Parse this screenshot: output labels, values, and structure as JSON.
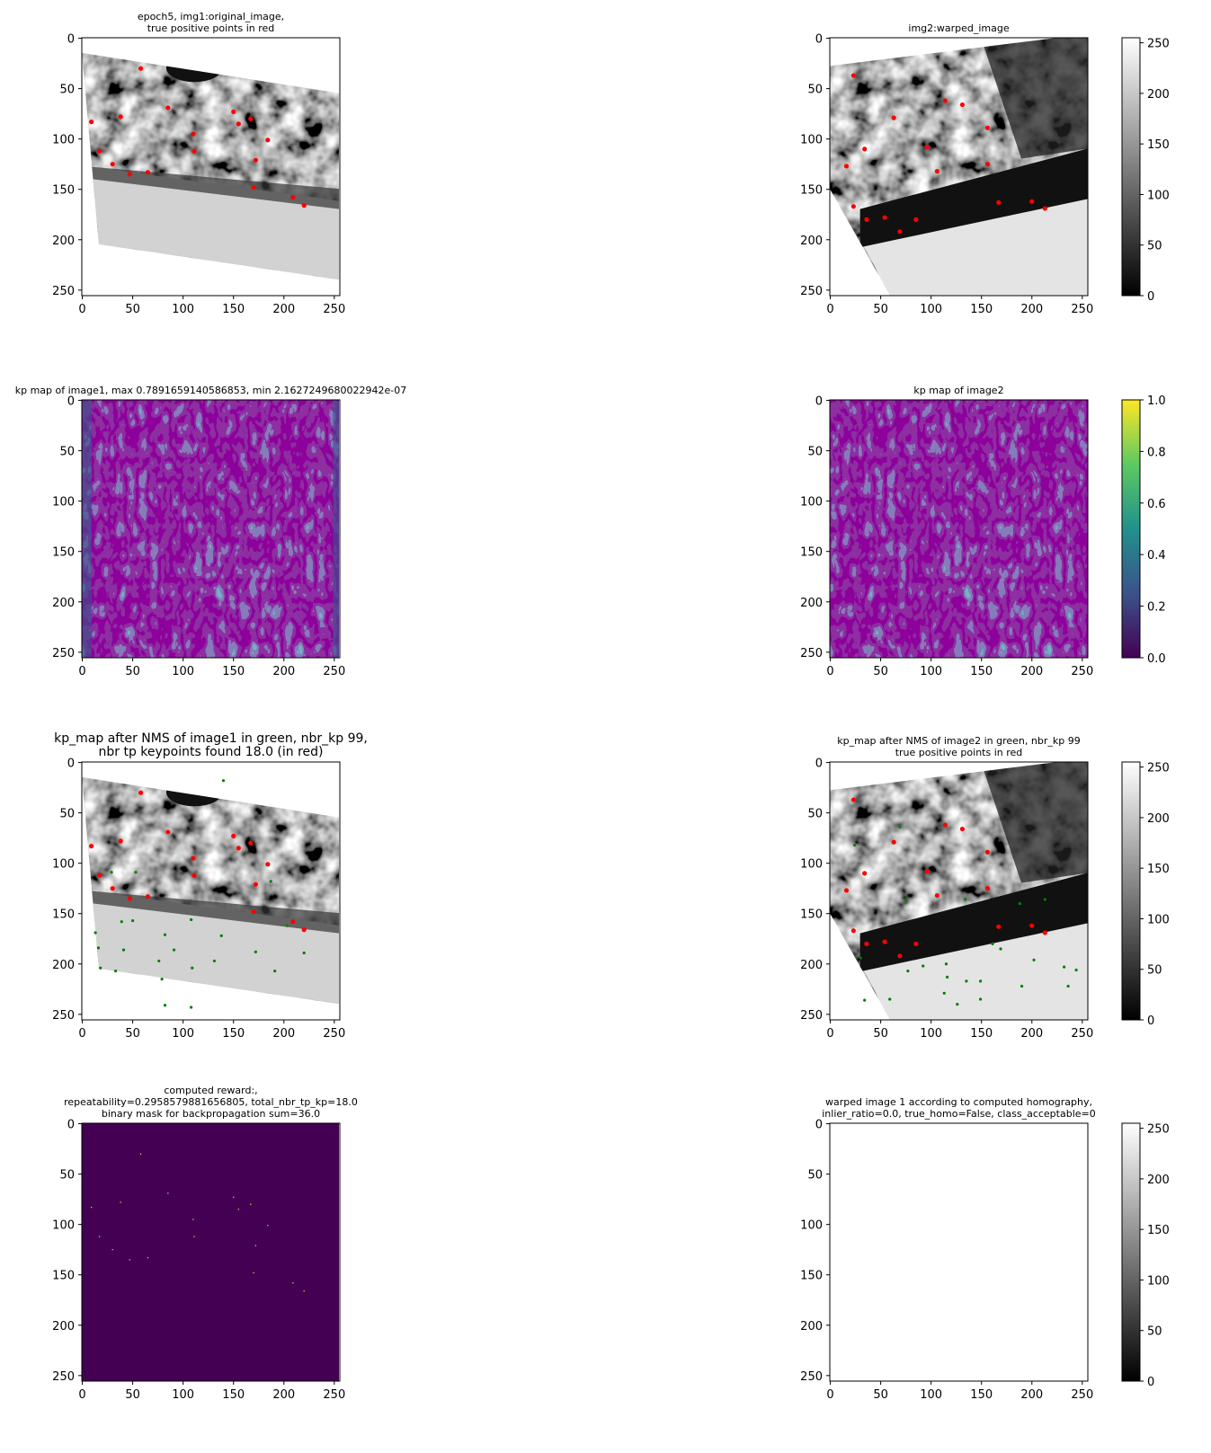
{
  "chart_data": [
    {
      "type": "image",
      "title": [
        "epoch5, img1:original_image,",
        "true positive points in red"
      ],
      "xlim": [
        -0.5,
        255.5
      ],
      "ylim": [
        255.5,
        -0.5
      ],
      "xticks": [
        0,
        50,
        100,
        150,
        200,
        250
      ],
      "yticks": [
        0,
        50,
        100,
        150,
        200,
        250
      ],
      "series": [
        {
          "color": "red",
          "x": [
            58,
            85,
            38,
            9,
            150,
            155,
            167,
            110,
            184,
            17,
            111,
            172,
            30,
            47,
            65,
            170,
            209,
            220
          ],
          "y": [
            30,
            69,
            78,
            83,
            73,
            85,
            80,
            95,
            101,
            112,
            112,
            121,
            125,
            135,
            133,
            148,
            158,
            166
          ]
        }
      ]
    },
    {
      "type": "image",
      "title": [
        "img2:warped_image"
      ],
      "xlim": [
        -0.5,
        255.5
      ],
      "ylim": [
        255.5,
        -0.5
      ],
      "xticks": [
        0,
        50,
        100,
        150,
        200,
        250
      ],
      "yticks": [
        0,
        50,
        100,
        150,
        200,
        250
      ],
      "series": [
        {
          "color": "red",
          "x": [
            23,
            114,
            131,
            63,
            156,
            34,
            96,
            106,
            156,
            16,
            23,
            36,
            54,
            85,
            69,
            167,
            200,
            213
          ],
          "y": [
            37,
            62,
            66,
            79,
            89,
            110,
            108,
            132,
            125,
            127,
            167,
            180,
            178,
            180,
            192,
            163,
            162,
            169
          ]
        }
      ],
      "colorbar": {
        "cmap": "gray",
        "lim": [
          0,
          255
        ],
        "ticks": [
          0,
          50,
          100,
          150,
          200,
          250
        ]
      }
    },
    {
      "type": "image",
      "title": [
        "kp map of image1, max 0.7891659140586853, min 2.1627249680022942e-07"
      ],
      "xlim": [
        -0.5,
        255.5
      ],
      "ylim": [
        255.5,
        -0.5
      ],
      "xticks": [
        0,
        50,
        100,
        150,
        200,
        250
      ],
      "yticks": [
        0,
        50,
        100,
        150,
        200,
        250
      ]
    },
    {
      "type": "image",
      "title": [
        "kp map of image2"
      ],
      "xlim": [
        -0.5,
        255.5
      ],
      "ylim": [
        255.5,
        -0.5
      ],
      "xticks": [
        0,
        50,
        100,
        150,
        200,
        250
      ],
      "yticks": [
        0,
        50,
        100,
        150,
        200,
        250
      ],
      "colorbar": {
        "cmap": "viridis",
        "lim": [
          0,
          1
        ],
        "ticks": [
          {
            "value": 0,
            "label": "0.0"
          },
          {
            "value": 0.2,
            "label": "0.2"
          },
          {
            "value": 0.4,
            "label": "0.4"
          },
          {
            "value": 0.6,
            "label": "0.6"
          },
          {
            "value": 0.8,
            "label": "0.8"
          },
          {
            "value": 1,
            "label": "1.0"
          }
        ]
      }
    },
    {
      "type": "image",
      "title": [
        "kp_map after NMS of image1 in green, nbr_kp 99,",
        "nbr tp keypoints found 18.0 (in red)"
      ],
      "xlim": [
        -0.5,
        255.5
      ],
      "ylim": [
        255.5,
        -0.5
      ],
      "xticks": [
        0,
        50,
        100,
        150,
        200,
        250
      ],
      "yticks": [
        0,
        50,
        100,
        150,
        200,
        250
      ],
      "series": [
        {
          "color": "green",
          "x": [
            140,
            13,
            16,
            18,
            33,
            39,
            50,
            41,
            82,
            91,
            76,
            79,
            82,
            108,
            109,
            131,
            138,
            172,
            220,
            191,
            203,
            108,
            29,
            53,
            187
          ],
          "y": [
            18,
            169,
            184,
            204,
            207,
            158,
            157,
            186,
            171,
            186,
            197,
            215,
            241,
            243,
            204,
            197,
            172,
            188,
            189,
            207,
            162,
            156,
            109,
            109,
            118
          ]
        },
        {
          "color": "red",
          "x": [
            58,
            85,
            38,
            9,
            150,
            155,
            167,
            110,
            184,
            17,
            111,
            172,
            30,
            47,
            65,
            170,
            209,
            220
          ],
          "y": [
            30,
            69,
            78,
            83,
            73,
            85,
            80,
            95,
            101,
            112,
            112,
            121,
            125,
            135,
            133,
            148,
            158,
            166
          ]
        }
      ]
    },
    {
      "type": "image",
      "title": [
        "kp_map after NMS of image2 in green, nbr_kp 99",
        "true positive points in red"
      ],
      "xlim": [
        -0.5,
        255.5
      ],
      "ylim": [
        255.5,
        -0.5
      ],
      "xticks": [
        0,
        50,
        100,
        150,
        200,
        250
      ],
      "yticks": [
        0,
        50,
        100,
        150,
        200,
        250
      ],
      "series": [
        {
          "color": "green",
          "x": [
            30,
            34,
            59,
            77,
            92,
            115,
            116,
            113,
            126,
            135,
            149,
            149,
            161,
            169,
            190,
            202,
            232,
            236,
            244,
            213,
            188,
            134,
            75,
            24,
            69
          ],
          "y": [
            194,
            236,
            235,
            207,
            202,
            200,
            213,
            229,
            240,
            217,
            217,
            235,
            180,
            185,
            222,
            196,
            203,
            222,
            206,
            136,
            140,
            136,
            136,
            82,
            64
          ]
        },
        {
          "color": "red",
          "x": [
            23,
            114,
            131,
            63,
            156,
            34,
            96,
            106,
            156,
            16,
            23,
            36,
            54,
            85,
            69,
            167,
            200,
            213
          ],
          "y": [
            37,
            62,
            66,
            79,
            89,
            110,
            108,
            132,
            125,
            127,
            167,
            180,
            178,
            180,
            192,
            163,
            162,
            169
          ]
        }
      ],
      "colorbar": {
        "cmap": "gray",
        "lim": [
          0,
          255
        ],
        "ticks": [
          0,
          50,
          100,
          150,
          200,
          250
        ]
      }
    },
    {
      "type": "image",
      "title": [
        "computed reward:,",
        "repeatability=0.2958579881656805, total_nbr_tp_kp=18.0",
        "binary mask for backpropagation sum=36.0"
      ],
      "xlim": [
        -0.5,
        255.5
      ],
      "ylim": [
        255.5,
        -0.5
      ],
      "xticks": [
        0,
        50,
        100,
        150,
        200,
        250
      ],
      "yticks": [
        0,
        50,
        100,
        150,
        200,
        250
      ],
      "series": [
        {
          "color": "#fde725",
          "x": [
            58,
            85,
            38,
            9,
            150,
            155,
            167,
            110,
            184,
            17,
            111,
            172,
            30,
            47,
            65,
            170,
            209,
            220
          ],
          "y": [
            30,
            69,
            78,
            83,
            73,
            85,
            80,
            95,
            101,
            112,
            112,
            121,
            125,
            135,
            133,
            148,
            158,
            166
          ]
        }
      ]
    },
    {
      "type": "image",
      "title": [
        "warped image 1 according to computed homography,",
        "inlier_ratio=0.0, true_homo=False, class_acceptable=0"
      ],
      "xlim": [
        -0.5,
        255.5
      ],
      "ylim": [
        255.5,
        -0.5
      ],
      "xticks": [
        0,
        50,
        100,
        150,
        200,
        250
      ],
      "yticks": [
        0,
        50,
        100,
        150,
        200,
        250
      ],
      "colorbar": {
        "cmap": "gray",
        "lim": [
          0,
          255
        ],
        "ticks": [
          0,
          50,
          100,
          150,
          200,
          250
        ]
      }
    }
  ]
}
